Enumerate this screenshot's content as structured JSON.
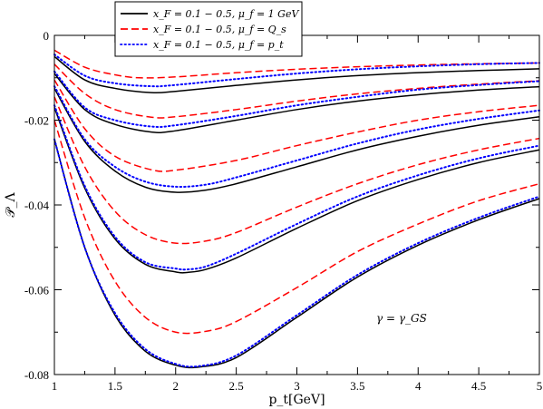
{
  "chart_data": {
    "type": "line",
    "xlabel": "p_t[GeV]",
    "ylabel": "𝒫_Λ",
    "xlim": [
      1,
      5
    ],
    "ylim": [
      -0.08,
      0
    ],
    "x_ticks": [
      "1",
      "1.5",
      "2",
      "2.5",
      "3",
      "3.5",
      "4",
      "4.5",
      "5"
    ],
    "y_ticks": [
      "0",
      "-0.02",
      "-0.04",
      "-0.06",
      "-0.08"
    ],
    "legend_position": "top-left",
    "annotation": "γ = γ_GS",
    "legend": [
      {
        "group": "mu1",
        "label": "x_F = 0.1 − 0.5,  μ_f = 1 GeV",
        "color": "#000000",
        "dash": "solid"
      },
      {
        "group": "Qs",
        "label": "x_F = 0.1 − 0.5,  μ_f = Q_s",
        "color": "#ff0000",
        "dash": "dashed"
      },
      {
        "group": "pt",
        "label": "x_F = 0.1 − 0.5,  μ_f = p_t",
        "color": "#0000ff",
        "dash": "dotted"
      }
    ],
    "series": [
      {
        "group": "mu1",
        "x": [
          1.0,
          1.25,
          1.5,
          1.8,
          2.0,
          2.5,
          3.0,
          3.5,
          4.0,
          4.5,
          5.0
        ],
        "y": [
          -0.005,
          -0.0105,
          -0.0125,
          -0.0135,
          -0.0132,
          -0.0118,
          -0.0105,
          -0.0095,
          -0.0088,
          -0.0083,
          -0.0079
        ]
      },
      {
        "group": "mu1",
        "x": [
          1.0,
          1.25,
          1.5,
          1.8,
          2.0,
          2.5,
          3.0,
          3.5,
          4.0,
          4.5,
          5.0
        ],
        "y": [
          -0.009,
          -0.0175,
          -0.021,
          -0.0228,
          -0.0225,
          -0.02,
          -0.0175,
          -0.0155,
          -0.014,
          -0.0129,
          -0.0121
        ]
      },
      {
        "group": "mu1",
        "x": [
          1.0,
          1.25,
          1.5,
          1.75,
          2.0,
          2.25,
          2.5,
          3.0,
          3.5,
          4.0,
          4.5,
          5.0
        ],
        "y": [
          -0.0125,
          -0.025,
          -0.032,
          -0.0358,
          -0.037,
          -0.0365,
          -0.035,
          -0.031,
          -0.027,
          -0.0238,
          -0.0212,
          -0.0192
        ]
      },
      {
        "group": "mu1",
        "x": [
          1.0,
          1.25,
          1.5,
          1.75,
          2.0,
          2.1,
          2.25,
          2.5,
          3.0,
          3.5,
          4.0,
          4.5,
          5.0
        ],
        "y": [
          -0.017,
          -0.036,
          -0.048,
          -0.054,
          -0.0558,
          -0.0559,
          -0.0552,
          -0.0525,
          -0.0455,
          -0.039,
          -0.034,
          -0.03,
          -0.027
        ]
      },
      {
        "group": "mu1",
        "x": [
          1.0,
          1.25,
          1.5,
          1.75,
          2.0,
          2.2,
          2.5,
          3.0,
          3.5,
          4.0,
          4.5,
          5.0
        ],
        "y": [
          -0.0245,
          -0.05,
          -0.066,
          -0.0745,
          -0.0778,
          -0.0782,
          -0.076,
          -0.0665,
          -0.057,
          -0.0495,
          -0.0435,
          -0.0385
        ]
      },
      {
        "group": "Qs",
        "x": [
          1.0,
          1.25,
          1.5,
          1.7,
          2.0,
          2.5,
          3.0,
          3.5,
          4.0,
          4.5,
          5.0
        ],
        "y": [
          -0.0035,
          -0.0075,
          -0.0093,
          -0.01,
          -0.0098,
          -0.0088,
          -0.008,
          -0.0074,
          -0.007,
          -0.0067,
          -0.0065
        ]
      },
      {
        "group": "Qs",
        "x": [
          1.0,
          1.25,
          1.5,
          1.8,
          2.0,
          2.5,
          3.0,
          3.5,
          4.0,
          4.5,
          5.0
        ],
        "y": [
          -0.0068,
          -0.0137,
          -0.0175,
          -0.0193,
          -0.0192,
          -0.0175,
          -0.0155,
          -0.0138,
          -0.0125,
          -0.0115,
          -0.0107
        ]
      },
      {
        "group": "Qs",
        "x": [
          1.0,
          1.25,
          1.5,
          1.8,
          2.0,
          2.5,
          3.0,
          3.5,
          4.0,
          4.5,
          5.0
        ],
        "y": [
          -0.0105,
          -0.022,
          -0.0285,
          -0.0317,
          -0.0318,
          -0.0295,
          -0.026,
          -0.0228,
          -0.02,
          -0.018,
          -0.0165
        ]
      },
      {
        "group": "Qs",
        "x": [
          1.0,
          1.25,
          1.5,
          1.75,
          2.0,
          2.25,
          2.5,
          3.0,
          3.5,
          4.0,
          4.5,
          5.0
        ],
        "y": [
          -0.0145,
          -0.031,
          -0.0415,
          -0.047,
          -0.049,
          -0.0485,
          -0.0465,
          -0.0405,
          -0.035,
          -0.0305,
          -0.027,
          -0.0243
        ]
      },
      {
        "group": "Qs",
        "x": [
          1.0,
          1.25,
          1.5,
          1.75,
          2.0,
          2.25,
          2.5,
          3.0,
          3.5,
          4.0,
          4.5,
          5.0
        ],
        "y": [
          -0.02,
          -0.043,
          -0.058,
          -0.0665,
          -0.07,
          -0.0698,
          -0.0675,
          -0.0595,
          -0.051,
          -0.0445,
          -0.039,
          -0.035
        ]
      },
      {
        "group": "pt",
        "x": [
          1.0,
          1.25,
          1.5,
          1.8,
          2.0,
          2.5,
          3.0,
          3.5,
          4.0,
          4.5,
          5.0
        ],
        "y": [
          -0.0045,
          -0.0095,
          -0.0113,
          -0.012,
          -0.0117,
          -0.0103,
          -0.009,
          -0.008,
          -0.0073,
          -0.0068,
          -0.0065
        ]
      },
      {
        "group": "pt",
        "x": [
          1.0,
          1.25,
          1.5,
          1.8,
          2.0,
          2.5,
          3.0,
          3.5,
          4.0,
          4.5,
          5.0
        ],
        "y": [
          -0.0085,
          -0.017,
          -0.02,
          -0.0215,
          -0.0212,
          -0.019,
          -0.0165,
          -0.0145,
          -0.0128,
          -0.0117,
          -0.0108
        ]
      },
      {
        "group": "pt",
        "x": [
          1.0,
          1.25,
          1.5,
          1.75,
          2.0,
          2.25,
          2.5,
          3.0,
          3.5,
          4.0,
          4.5,
          5.0
        ],
        "y": [
          -0.012,
          -0.0245,
          -0.031,
          -0.0345,
          -0.0357,
          -0.0352,
          -0.0335,
          -0.0295,
          -0.0255,
          -0.0222,
          -0.0197,
          -0.0177
        ]
      },
      {
        "group": "pt",
        "x": [
          1.0,
          1.25,
          1.5,
          1.75,
          2.0,
          2.1,
          2.25,
          2.5,
          3.0,
          3.5,
          4.0,
          4.5,
          5.0
        ],
        "y": [
          -0.0165,
          -0.0355,
          -0.0475,
          -0.0535,
          -0.055,
          -0.0552,
          -0.0545,
          -0.0515,
          -0.0445,
          -0.038,
          -0.033,
          -0.029,
          -0.026
        ]
      },
      {
        "group": "pt",
        "x": [
          1.0,
          1.25,
          1.5,
          1.75,
          2.0,
          2.2,
          2.5,
          3.0,
          3.5,
          4.0,
          4.5,
          5.0
        ],
        "y": [
          -0.0245,
          -0.05,
          -0.0655,
          -0.074,
          -0.0775,
          -0.078,
          -0.0755,
          -0.066,
          -0.0565,
          -0.049,
          -0.043,
          -0.038
        ]
      }
    ]
  }
}
